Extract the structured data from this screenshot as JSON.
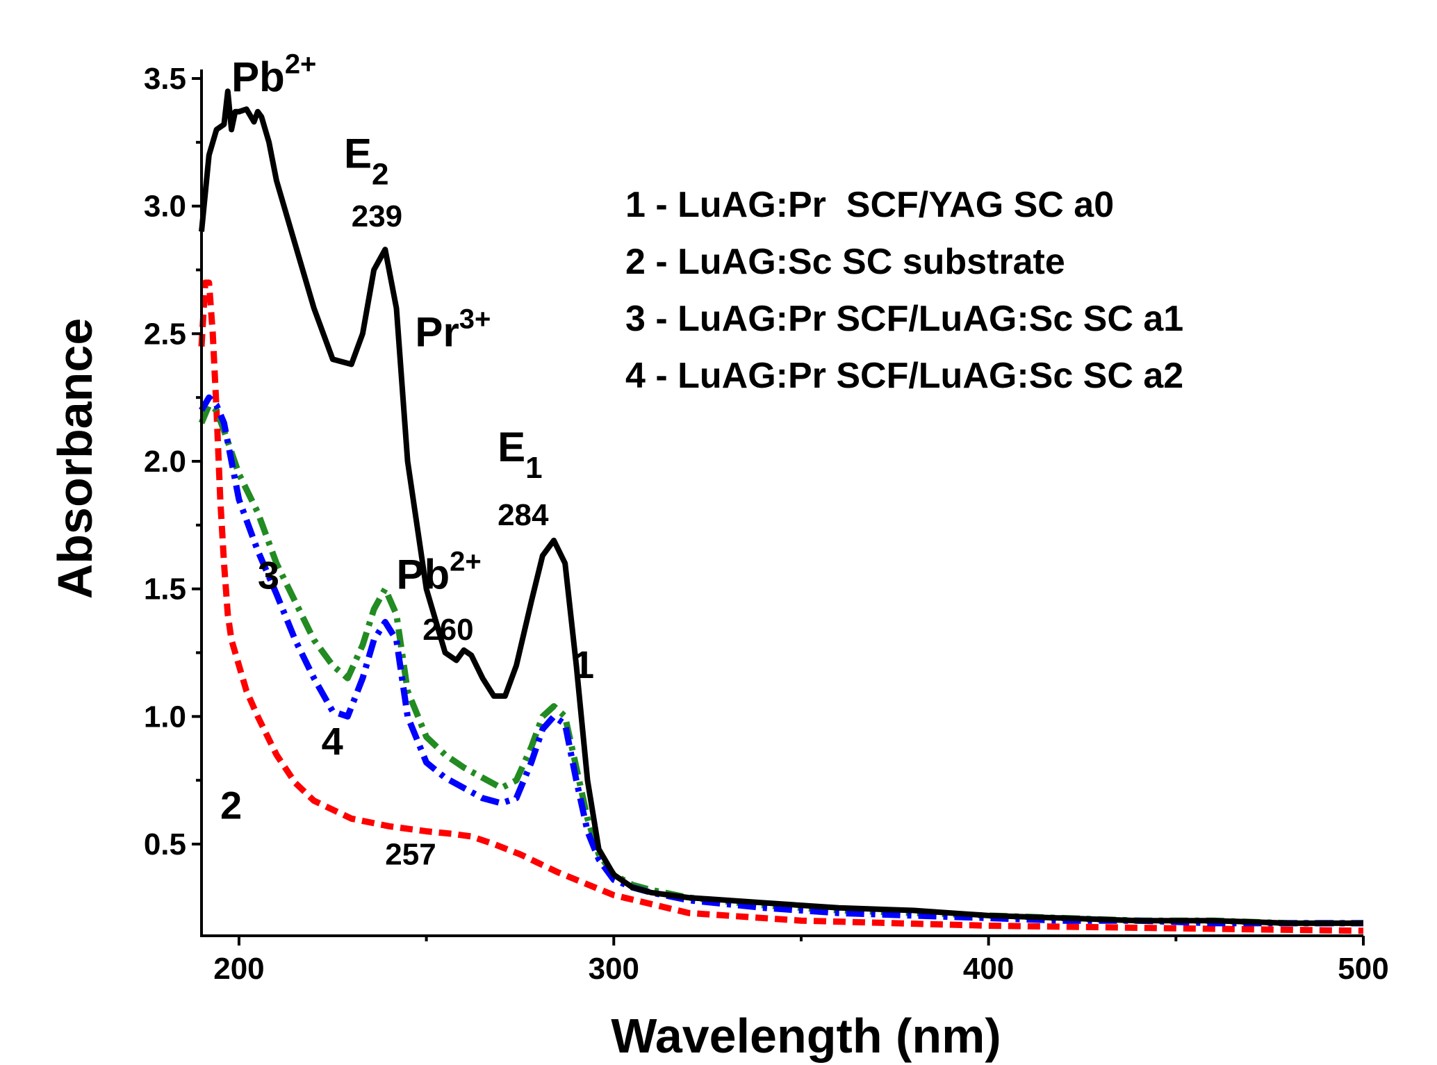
{
  "chart_data": {
    "type": "line",
    "xlabel": "Wavelength (nm)",
    "ylabel": "Absorbance",
    "xlim": [
      190,
      500
    ],
    "ylim": [
      0.15,
      3.5
    ],
    "x_ticks": [
      200,
      300,
      400,
      500
    ],
    "x_tick_labels": [
      "200",
      "300",
      "400",
      "500"
    ],
    "y_ticks": [
      0.5,
      1.0,
      1.5,
      2.0,
      2.5,
      3.0,
      3.5
    ],
    "y_tick_labels": [
      "0.5",
      "1.0",
      "1.5",
      "2.0",
      "2.5",
      "3.0",
      "3.5"
    ],
    "legend_position": "top-right",
    "legend": [
      "1 - LuAG:Pr  SCF/YAG SC a0",
      "2 - LuAG:Sc SC substrate",
      "3 - LuAG:Pr SCF/LuAG:Sc SC a1",
      "4 - LuAG:Pr SCF/LuAG:Sc SC a2"
    ],
    "series": [
      {
        "name": "1",
        "color": "#000000",
        "dash": "solid",
        "x": [
          190,
          192,
          194,
          196,
          197,
          198,
          199,
          200,
          202,
          204,
          205,
          206,
          208,
          210,
          215,
          220,
          225,
          230,
          233,
          236,
          239,
          242,
          245,
          250,
          255,
          258,
          260,
          262,
          265,
          268,
          271,
          274,
          278,
          281,
          284,
          287,
          290,
          293,
          296,
          300,
          305,
          310,
          320,
          340,
          360,
          380,
          400,
          420,
          440,
          460,
          480,
          500
        ],
        "values": [
          2.9,
          3.2,
          3.3,
          3.32,
          3.45,
          3.3,
          3.37,
          3.37,
          3.38,
          3.33,
          3.37,
          3.35,
          3.25,
          3.1,
          2.85,
          2.6,
          2.4,
          2.38,
          2.5,
          2.75,
          2.83,
          2.6,
          2.0,
          1.5,
          1.25,
          1.22,
          1.26,
          1.24,
          1.15,
          1.08,
          1.08,
          1.2,
          1.45,
          1.63,
          1.69,
          1.6,
          1.2,
          0.75,
          0.48,
          0.38,
          0.33,
          0.31,
          0.29,
          0.27,
          0.25,
          0.24,
          0.22,
          0.21,
          0.2,
          0.2,
          0.19,
          0.19
        ]
      },
      {
        "name": "2",
        "color": "#ff0000",
        "dash": "dashed",
        "x": [
          190,
          191,
          192,
          193,
          194,
          195,
          196,
          197,
          198,
          200,
          202,
          205,
          210,
          215,
          220,
          230,
          240,
          250,
          257,
          262,
          268,
          275,
          285,
          300,
          320,
          350,
          400,
          450,
          500
        ],
        "values": [
          2.45,
          2.7,
          2.7,
          2.5,
          2.2,
          1.85,
          1.6,
          1.4,
          1.3,
          1.2,
          1.1,
          1.0,
          0.85,
          0.74,
          0.67,
          0.6,
          0.57,
          0.55,
          0.54,
          0.53,
          0.5,
          0.46,
          0.39,
          0.3,
          0.23,
          0.2,
          0.18,
          0.17,
          0.16
        ]
      },
      {
        "name": "3",
        "color": "#228b22",
        "dash": "dashdot",
        "x": [
          190,
          192,
          194,
          196,
          200,
          205,
          210,
          215,
          220,
          225,
          229,
          233,
          236,
          239,
          242,
          245,
          250,
          255,
          260,
          265,
          270,
          274,
          278,
          281,
          284,
          287,
          290,
          293,
          296,
          300,
          305,
          310,
          320,
          340,
          360,
          380,
          400,
          420,
          440,
          460,
          480,
          500
        ],
        "values": [
          2.15,
          2.22,
          2.2,
          2.12,
          1.95,
          1.8,
          1.6,
          1.45,
          1.3,
          1.2,
          1.15,
          1.28,
          1.42,
          1.5,
          1.4,
          1.1,
          0.92,
          0.85,
          0.8,
          0.76,
          0.72,
          0.75,
          0.88,
          1.0,
          1.04,
          1.0,
          0.8,
          0.6,
          0.46,
          0.38,
          0.34,
          0.32,
          0.29,
          0.26,
          0.24,
          0.23,
          0.22,
          0.21,
          0.2,
          0.2,
          0.19,
          0.19
        ]
      },
      {
        "name": "4",
        "color": "#0000ff",
        "dash": "dashdot",
        "x": [
          190,
          192,
          194,
          196,
          200,
          205,
          210,
          215,
          220,
          225,
          229,
          233,
          236,
          239,
          242,
          245,
          250,
          255,
          260,
          265,
          270,
          274,
          278,
          281,
          284,
          287,
          290,
          293,
          296,
          300,
          305,
          310,
          320,
          340,
          360,
          380,
          400,
          420,
          440,
          460,
          480,
          500
        ],
        "values": [
          2.2,
          2.25,
          2.22,
          2.15,
          1.85,
          1.65,
          1.48,
          1.3,
          1.15,
          1.02,
          1.0,
          1.15,
          1.3,
          1.37,
          1.3,
          1.0,
          0.82,
          0.76,
          0.72,
          0.68,
          0.66,
          0.68,
          0.82,
          0.95,
          1.0,
          0.97,
          0.75,
          0.55,
          0.44,
          0.36,
          0.33,
          0.31,
          0.28,
          0.25,
          0.23,
          0.22,
          0.21,
          0.2,
          0.2,
          0.19,
          0.19,
          0.19
        ]
      }
    ],
    "annotations": [
      {
        "text": "Pb",
        "sup": "2+",
        "x": 198,
        "y": 3.45,
        "size": "big"
      },
      {
        "text": "E",
        "sub": "2",
        "x": 228,
        "y": 3.15,
        "size": "big"
      },
      {
        "text": "239",
        "x": 230,
        "y": 2.92,
        "size": "num"
      },
      {
        "text": "Pr",
        "sup": "3+",
        "x": 247,
        "y": 2.45,
        "size": "big"
      },
      {
        "text": "E",
        "sub": "1",
        "x": 269,
        "y": 2.0,
        "size": "big"
      },
      {
        "text": "284",
        "x": 269,
        "y": 1.75,
        "size": "num"
      },
      {
        "text": "Pb",
        "sup": "2+",
        "x": 242,
        "y": 1.5,
        "size": "big"
      },
      {
        "text": "260",
        "x": 249,
        "y": 1.3,
        "size": "num"
      },
      {
        "text": "1",
        "x": 289,
        "y": 1.15,
        "size": "curve"
      },
      {
        "text": "3",
        "x": 205,
        "y": 1.5,
        "size": "curve"
      },
      {
        "text": "4",
        "x": 222,
        "y": 0.85,
        "size": "curve"
      },
      {
        "text": "2",
        "x": 195,
        "y": 0.6,
        "size": "curve"
      },
      {
        "text": "257",
        "x": 239,
        "y": 0.42,
        "size": "num"
      }
    ]
  }
}
